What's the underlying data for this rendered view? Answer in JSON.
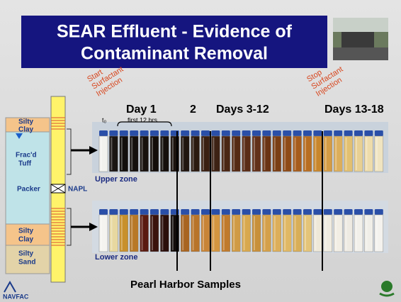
{
  "title_lines": [
    "SEAR Effluent - Evidence of",
    "Contaminant Removal"
  ],
  "annotations": {
    "start": [
      "Start",
      "Surfactant",
      "Injection"
    ],
    "stop": [
      "Stop",
      "Surfactant",
      "Injection"
    ],
    "t0": "t₀"
  },
  "periods": {
    "day1": "Day 1",
    "day1_note": "first 12 hrs",
    "day2": "2",
    "days3_12": "Days 3-12",
    "days13_18": "Days 13-18"
  },
  "zones": {
    "upper": "Upper zone",
    "lower": "Lower zone"
  },
  "well_log": {
    "silty_clay_top": [
      "Silty",
      "Clay"
    ],
    "fracd_tuff": [
      "Frac'd",
      "Tuff"
    ],
    "packer": "Packer",
    "napl": "NAPL",
    "silty_clay_bottom": [
      "Silty",
      "Clay"
    ],
    "silty_sand": [
      "Silty",
      "Sand"
    ]
  },
  "footer": {
    "caption": "Pearl Harbor Samples",
    "navfac": "NAVFAC"
  }
}
